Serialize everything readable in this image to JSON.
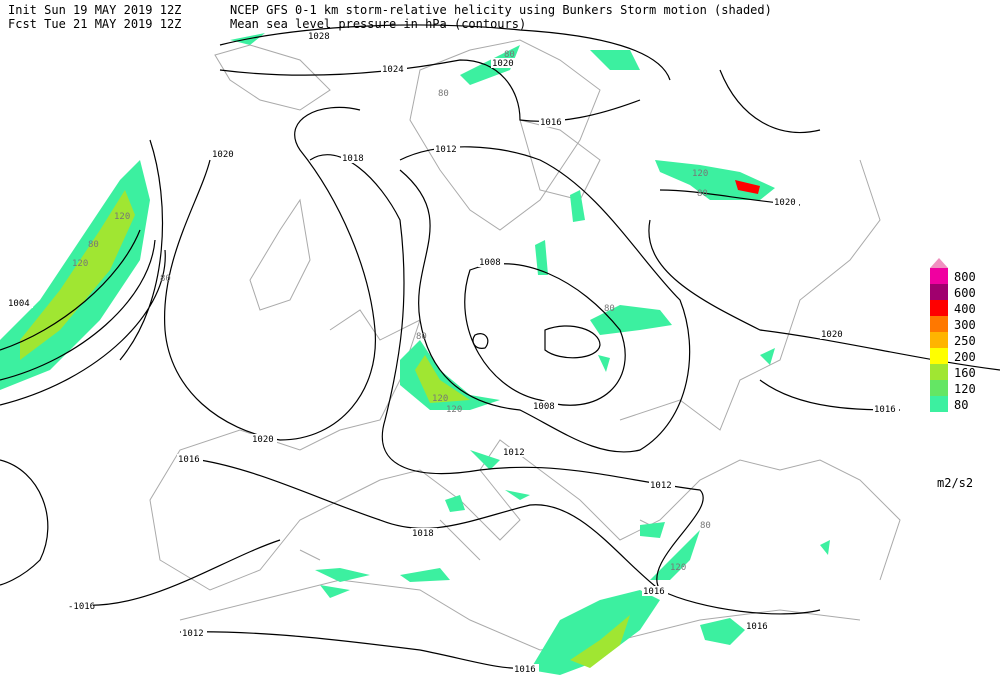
{
  "header": {
    "init": "Init  Sun 19 MAY 2019 12Z",
    "fcst": "Fcst Tue 21 MAY 2019 12Z",
    "title_shaded": "NCEP GFS 0-1 km storm-relative helicity using Bunkers Storm motion (shaded)",
    "title_contours": "Mean sea level pressure in hPa (contours)"
  },
  "legend": {
    "top_color": "#f090c0",
    "levels": [
      {
        "label": "800",
        "color": "#f000a0"
      },
      {
        "label": "600",
        "color": "#a0006e"
      },
      {
        "label": "400",
        "color": "#ff0000"
      },
      {
        "label": "300",
        "color": "#ff7800"
      },
      {
        "label": "250",
        "color": "#ffb400"
      },
      {
        "label": "200",
        "color": "#ffff00"
      },
      {
        "label": "160",
        "color": "#a0e632"
      },
      {
        "label": "120",
        "color": "#64e664"
      },
      {
        "label": "80",
        "color": "#3cf0a0"
      }
    ],
    "unit": "m2/s2"
  },
  "contour_labels": [
    "1028",
    "1024",
    "1020",
    "1016",
    "1012",
    "1018",
    "1020",
    "1004",
    "1008",
    "1020",
    "1020",
    "1016",
    "1008",
    "1020",
    "1016",
    "1012",
    "1012",
    "1018",
    "1016",
    "-1016",
    "1012",
    "1016",
    "1016"
  ],
  "shade_labels": [
    "120",
    "80",
    "120",
    "80",
    "120",
    "80",
    "80",
    "80",
    "120",
    "120",
    "80",
    "120",
    "80",
    "80"
  ]
}
